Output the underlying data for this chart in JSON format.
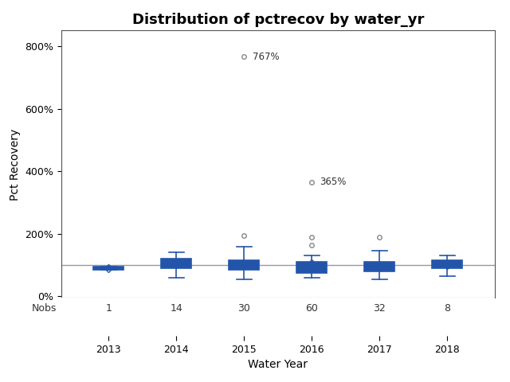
{
  "title": "Distribution of pctrecov by water_yr",
  "xlabel": "Water Year",
  "ylabel": "Pct Recovery",
  "years": [
    2013,
    2014,
    2015,
    2016,
    2017,
    2018
  ],
  "nobs": [
    1,
    14,
    30,
    60,
    32,
    8
  ],
  "ylim": [
    -0.05,
    8.5
  ],
  "yticks": [
    0,
    2,
    4,
    6,
    8
  ],
  "ytick_labels": [
    "0%",
    "200%",
    "400%",
    "600%",
    "800%"
  ],
  "hline_y": 1.0,
  "box_data": {
    "2013": {
      "q1": 0.85,
      "median": 0.9,
      "q3": 0.95,
      "whislo": 0.85,
      "whishi": 0.95,
      "mean": 0.9,
      "fliers": []
    },
    "2014": {
      "q1": 0.9,
      "median": 1.05,
      "q3": 1.2,
      "whislo": 0.6,
      "whishi": 1.4,
      "mean": 1.05,
      "fliers": []
    },
    "2015": {
      "q1": 0.85,
      "median": 1.0,
      "q3": 1.15,
      "whislo": 0.55,
      "whishi": 1.6,
      "mean": 1.0,
      "fliers": [
        1.95,
        7.67
      ]
    },
    "2016": {
      "q1": 0.75,
      "median": 0.9,
      "q3": 1.1,
      "whislo": 0.6,
      "whishi": 1.3,
      "mean": 1.05,
      "fliers": [
        1.65,
        1.9,
        3.65
      ]
    },
    "2017": {
      "q1": 0.8,
      "median": 0.95,
      "q3": 1.1,
      "whislo": 0.55,
      "whishi": 1.45,
      "mean": 1.0,
      "fliers": [
        1.9
      ]
    },
    "2018": {
      "q1": 0.9,
      "median": 1.0,
      "q3": 1.15,
      "whislo": 0.65,
      "whishi": 1.3,
      "mean": 1.0,
      "fliers": []
    }
  },
  "outlier_labels": {
    "2015": {
      "value": 7.67,
      "label": "767%"
    },
    "2016": {
      "value": 3.65,
      "label": "365%"
    }
  },
  "box_color": "#2255aa",
  "box_fill": "#c8d4e8",
  "median_color": "#2255aa",
  "whisker_color": "#2255aa",
  "flier_color": "#888888",
  "mean_marker_color": "#2255aa",
  "hline_color": "#999999",
  "background_color": "#ffffff",
  "title_fontsize": 13,
  "label_fontsize": 10,
  "tick_fontsize": 9,
  "nobs_fontsize": 9
}
